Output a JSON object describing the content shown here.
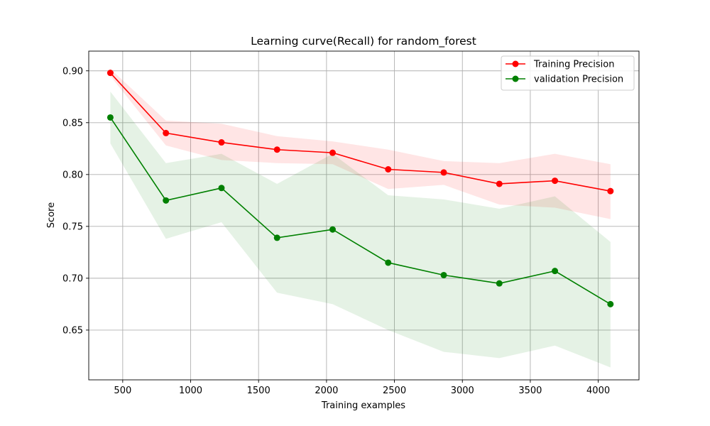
{
  "chart_data": {
    "type": "line",
    "title": "Learning curve(Recall) for random_forest",
    "xlabel": "Training examples",
    "ylabel": "Score",
    "xlim": [
      250,
      4300
    ],
    "ylim": [
      0.602,
      0.919
    ],
    "x_ticks": [
      500,
      1000,
      1500,
      2000,
      2500,
      3000,
      3500,
      4000
    ],
    "x_tick_labels": [
      "500",
      "1000",
      "1500",
      "2000",
      "2500",
      "3000",
      "3500",
      "4000"
    ],
    "y_ticks": [
      0.65,
      0.7,
      0.75,
      0.8,
      0.85,
      0.9
    ],
    "y_tick_labels": [
      "0.65",
      "0.70",
      "0.75",
      "0.80",
      "0.85",
      "0.90"
    ],
    "grid": true,
    "legend_position": "top-right",
    "x": [
      409,
      818,
      1227,
      1636,
      2045,
      2454,
      2863,
      3272,
      3681,
      4090
    ],
    "series": [
      {
        "name": "Training Precision",
        "color": "#ff0000",
        "band_color": "#ff0000",
        "values": [
          0.898,
          0.84,
          0.831,
          0.824,
          0.821,
          0.805,
          0.802,
          0.791,
          0.794,
          0.784
        ],
        "band_upper": [
          0.902,
          0.852,
          0.849,
          0.837,
          0.832,
          0.824,
          0.813,
          0.811,
          0.82,
          0.81
        ],
        "band_lower": [
          0.895,
          0.828,
          0.814,
          0.811,
          0.81,
          0.786,
          0.79,
          0.771,
          0.768,
          0.757
        ]
      },
      {
        "name": "validation Precision",
        "color": "#008000",
        "band_color": "#008000",
        "values": [
          0.855,
          0.775,
          0.787,
          0.739,
          0.747,
          0.715,
          0.703,
          0.695,
          0.707,
          0.675
        ],
        "band_upper": [
          0.88,
          0.811,
          0.82,
          0.791,
          0.82,
          0.78,
          0.776,
          0.767,
          0.779,
          0.735
        ],
        "band_lower": [
          0.83,
          0.738,
          0.754,
          0.686,
          0.675,
          0.65,
          0.629,
          0.623,
          0.635,
          0.614
        ]
      }
    ]
  }
}
